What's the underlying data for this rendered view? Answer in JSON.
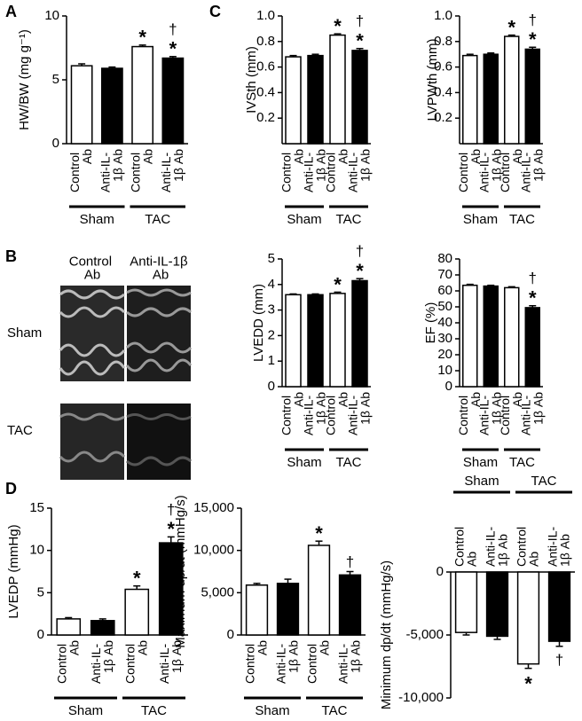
{
  "image_panel": {
    "panel": "B",
    "columns": [
      "Control\nAb",
      "Anti-IL-1β\nAb"
    ],
    "rows": [
      "Sham",
      "TAC"
    ]
  },
  "chart_data": [
    {
      "type": "bar",
      "panel": "A",
      "ylabel": "HW/BW (mg g⁻¹)",
      "categories": [
        "Control\nAb",
        "Anti-IL-\n1β Ab",
        "Control\nAb",
        "Anti-IL-\n1β Ab"
      ],
      "groups": [
        "Sham",
        "TAC"
      ],
      "values": [
        6.1,
        5.9,
        7.6,
        6.7
      ],
      "errors": [
        0.15,
        0.1,
        0.12,
        0.12
      ],
      "colors": [
        "#ffffff",
        "#000000",
        "#ffffff",
        "#000000"
      ],
      "markers": [
        null,
        null,
        [
          "*"
        ],
        [
          "†",
          "*"
        ]
      ],
      "ylim": [
        0,
        10
      ],
      "yticks": [
        0,
        5,
        10
      ]
    },
    {
      "type": "bar",
      "panel": "C",
      "ylabel": "IVSth (mm)",
      "categories": [
        "Control\nAb",
        "Anti-IL-\n1β Ab",
        "Control\nAb",
        "Anti-IL-\n1β Ab"
      ],
      "groups": [
        "Sham",
        "TAC"
      ],
      "values": [
        0.68,
        0.69,
        0.85,
        0.73
      ],
      "errors": [
        0.01,
        0.01,
        0.01,
        0.015
      ],
      "colors": [
        "#ffffff",
        "#000000",
        "#ffffff",
        "#000000"
      ],
      "markers": [
        null,
        null,
        [
          "*"
        ],
        [
          "†",
          "*"
        ]
      ],
      "ylim": [
        0,
        1
      ],
      "yticks": [
        0.2,
        0.4,
        0.6,
        0.8,
        {
          "value": 1,
          "label": "1.0"
        }
      ]
    },
    {
      "type": "bar",
      "ylabel": "LVPWth (mm)",
      "categories": [
        "Control\nAb",
        "Anti-IL-\n1β Ab",
        "Control\nAb",
        "Anti-IL-\n1β Ab"
      ],
      "groups": [
        "Sham",
        "TAC"
      ],
      "values": [
        0.69,
        0.7,
        0.84,
        0.74
      ],
      "errors": [
        0.01,
        0.01,
        0.01,
        0.015
      ],
      "colors": [
        "#ffffff",
        "#000000",
        "#ffffff",
        "#000000"
      ],
      "markers": [
        null,
        null,
        [
          "*"
        ],
        [
          "†",
          "*"
        ]
      ],
      "ylim": [
        0,
        1
      ],
      "yticks": [
        0.2,
        0.4,
        0.6,
        0.8,
        {
          "value": 1,
          "label": "1.0"
        }
      ]
    },
    {
      "type": "bar",
      "ylabel": "LVEDD (mm)",
      "categories": [
        "Control\nAb",
        "Anti-IL-\n1β Ab",
        "Control\nAb",
        "Anti-IL-\n1β Ab"
      ],
      "groups": [
        "Sham",
        "TAC"
      ],
      "values": [
        3.6,
        3.6,
        3.65,
        4.15
      ],
      "errors": [
        0.03,
        0.03,
        0.05,
        0.08
      ],
      "colors": [
        "#ffffff",
        "#000000",
        "#ffffff",
        "#000000"
      ],
      "markers": [
        null,
        null,
        [
          "*"
        ],
        [
          "†",
          "*"
        ]
      ],
      "ylim": [
        0,
        5
      ],
      "yticks": [
        0,
        1,
        2,
        3,
        4,
        5
      ]
    },
    {
      "type": "bar",
      "ylabel": "EF (%)",
      "categories": [
        "Control\nAb",
        "Anti-IL-\n1β Ab",
        "Control\nAb",
        "Anti-IL-\n1β Ab"
      ],
      "groups": [
        "Sham",
        "TAC"
      ],
      "values": [
        63.5,
        63,
        62,
        49.5
      ],
      "errors": [
        0.6,
        0.5,
        0.6,
        1.2
      ],
      "colors": [
        "#ffffff",
        "#000000",
        "#ffffff",
        "#000000"
      ],
      "markers": [
        null,
        null,
        null,
        [
          "†",
          "*"
        ]
      ],
      "ylim": [
        0,
        80
      ],
      "yticks": [
        0,
        10,
        20,
        30,
        40,
        50,
        60,
        70,
        80
      ]
    },
    {
      "type": "bar",
      "panel": "D",
      "ylabel": "LVEDP (mmHg)",
      "categories": [
        "Control\nAb",
        "Anti-IL-\n1β Ab",
        "Control\nAb",
        "Anti-IL-\n1β Ab"
      ],
      "groups": [
        "Sham",
        "TAC"
      ],
      "values": [
        1.9,
        1.7,
        5.4,
        10.9
      ],
      "errors": [
        0.15,
        0.2,
        0.4,
        0.7
      ],
      "colors": [
        "#ffffff",
        "#000000",
        "#ffffff",
        "#000000"
      ],
      "markers": [
        null,
        null,
        [
          "*"
        ],
        [
          "†",
          "*"
        ]
      ],
      "ylim": [
        0,
        15
      ],
      "yticks": [
        0,
        5,
        10,
        15
      ]
    },
    {
      "type": "bar",
      "ylabel": "Maximum dp/dt (mmHg/s)",
      "categories": [
        "Control\nAb",
        "Anti-IL-\n1β Ab",
        "Control\nAb",
        "Anti-IL-\n1β Ab"
      ],
      "groups": [
        "Sham",
        "TAC"
      ],
      "values": [
        5900,
        6100,
        10600,
        7100
      ],
      "errors": [
        200,
        500,
        500,
        400
      ],
      "colors": [
        "#ffffff",
        "#000000",
        "#ffffff",
        "#000000"
      ],
      "markers": [
        null,
        null,
        [
          "*"
        ],
        [
          "†"
        ]
      ],
      "ylim": [
        0,
        15000
      ],
      "yticks": [
        0,
        {
          "value": 5000,
          "label": "5,000"
        },
        {
          "value": 10000,
          "label": "10,000"
        },
        {
          "value": 15000,
          "label": "15,000"
        }
      ]
    },
    {
      "type": "bar",
      "ylabel": "Minimum dp/dt (mmHg/s)",
      "categories": [
        "Control\nAb",
        "Anti-IL-\n1β Ab",
        "Control\nAb",
        "Anti-IL-\n1β Ab"
      ],
      "groups": [
        "Sham",
        "TAC"
      ],
      "values": [
        -4800,
        -5100,
        -7300,
        -5500
      ],
      "errors": [
        200,
        250,
        350,
        400
      ],
      "colors": [
        "#ffffff",
        "#000000",
        "#ffffff",
        "#000000"
      ],
      "markers": [
        null,
        null,
        [
          "*"
        ],
        [
          "†"
        ]
      ],
      "ylim": [
        -10000,
        0
      ],
      "yticks": [
        {
          "value": -10000,
          "label": "-10,000"
        },
        {
          "value": -5000,
          "label": "-5,000"
        },
        0
      ]
    }
  ]
}
